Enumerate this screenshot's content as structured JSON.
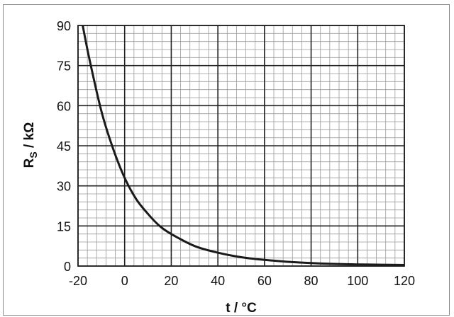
{
  "chart_data": {
    "type": "line",
    "title": "",
    "xlabel": "t / °C",
    "ylabel": {
      "main": "R",
      "sub": "S",
      "rest": " / kΩ"
    },
    "xlim": [
      -20,
      120
    ],
    "ylim": [
      0,
      90
    ],
    "x_ticks": [
      "-20",
      "0",
      "20",
      "40",
      "60",
      "80",
      "100",
      "120"
    ],
    "y_ticks": [
      "0",
      "15",
      "30",
      "45",
      "60",
      "75",
      "90"
    ],
    "grid": true,
    "series": [
      {
        "x": [
          -18,
          -15,
          -10,
          -5,
          0,
          5,
          10,
          15,
          20,
          30,
          40,
          50,
          60,
          70,
          80,
          90,
          100,
          110,
          120
        ],
        "values": [
          90,
          77,
          58,
          44,
          33,
          25,
          19.5,
          15,
          12,
          7.5,
          5,
          3.3,
          2.3,
          1.6,
          1.1,
          0.8,
          0.6,
          0.5,
          0.4
        ]
      }
    ],
    "colors": {
      "curve": "#1a1a1a",
      "grid_major": "#222222",
      "grid_minor": "#9a9a9a"
    }
  }
}
